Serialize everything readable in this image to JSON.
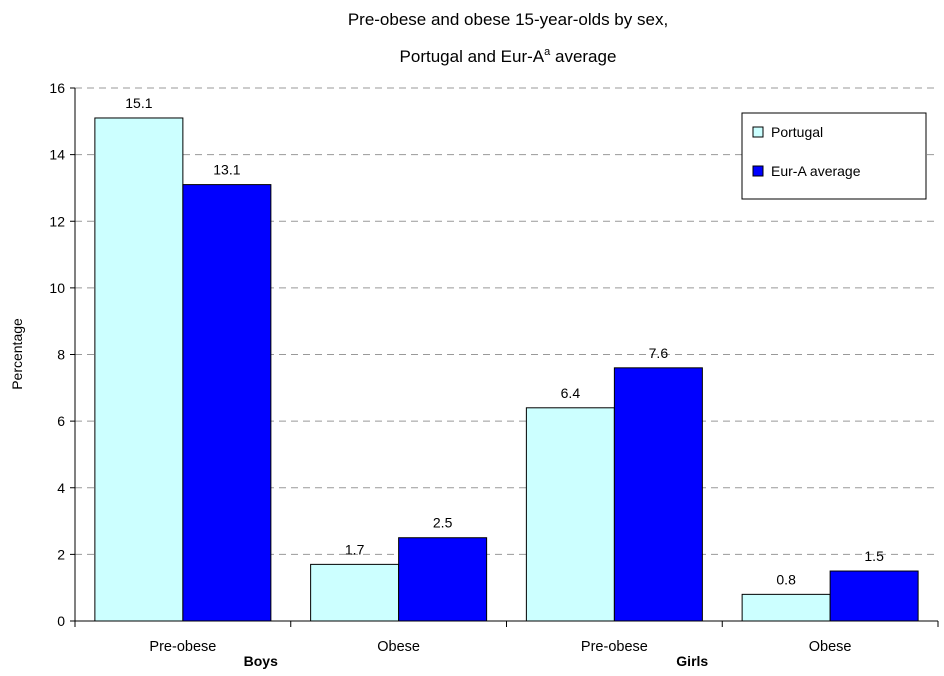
{
  "chart_data": {
    "type": "bar",
    "title_line1": "Pre-obese and obese 15-year-olds by sex,",
    "title_line2_pre": "Portugal and Eur-A",
    "title_line2_sup": "a",
    "title_line2_post": " average",
    "ylabel": "Percentage",
    "xlabel": "",
    "ylim": [
      0,
      16
    ],
    "yticks": [
      0,
      2,
      4,
      6,
      8,
      10,
      12,
      14,
      16
    ],
    "grid": true,
    "legend_position": "top-right",
    "categories": [
      "Pre-obese",
      "Obese",
      "Pre-obese",
      "Obese"
    ],
    "groups": [
      {
        "label": "Boys",
        "categories": [
          "Pre-obese",
          "Obese"
        ]
      },
      {
        "label": "Girls",
        "categories": [
          "Pre-obese",
          "Obese"
        ]
      }
    ],
    "series": [
      {
        "name": "Portugal",
        "color": "#ccffff",
        "values": [
          15.1,
          1.7,
          6.4,
          0.8
        ],
        "labels": [
          "15.1",
          "1.7",
          "6.4",
          "0.8"
        ]
      },
      {
        "name": "Eur-A average",
        "color": "#0000ff",
        "values": [
          13.1,
          2.5,
          7.6,
          1.5
        ],
        "labels": [
          "13.1",
          "2.5",
          "7.6",
          "1.5"
        ]
      }
    ]
  }
}
